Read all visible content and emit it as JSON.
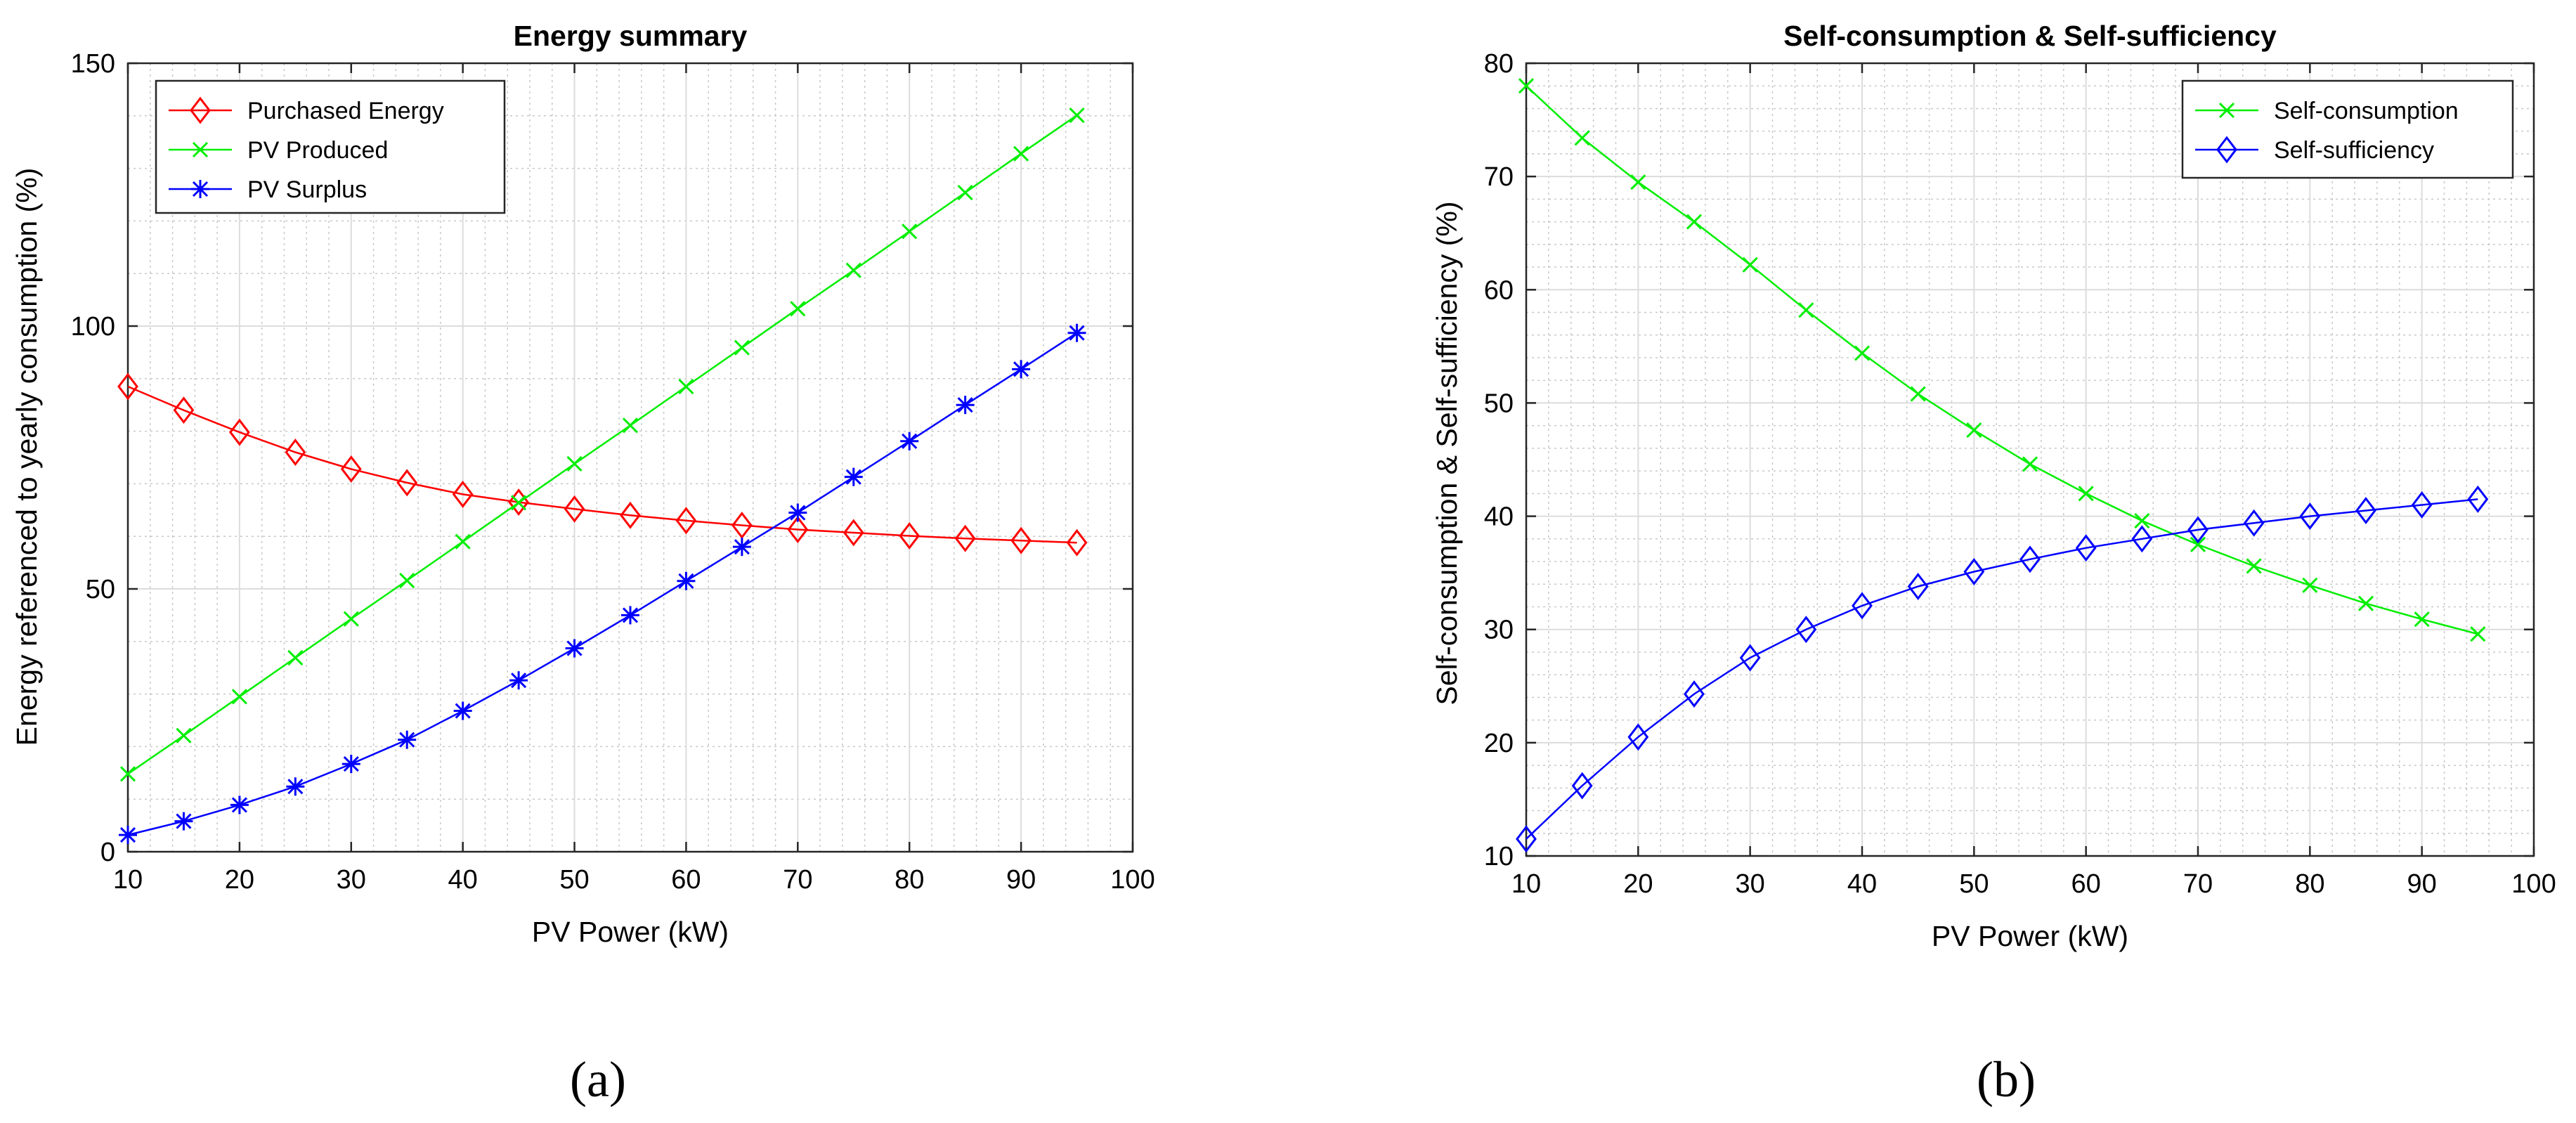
{
  "chart_data": [
    {
      "id": "a",
      "type": "line",
      "caption": "(a)",
      "title": "Energy summary",
      "xlabel": "PV Power (kW)",
      "ylabel": "Energy referenced to yearly consumption (%)",
      "xlim": [
        10,
        100
      ],
      "ylim": [
        0,
        150
      ],
      "xticks": [
        10,
        20,
        30,
        40,
        50,
        60,
        70,
        80,
        90,
        100
      ],
      "yticks": [
        0,
        50,
        100,
        150
      ],
      "grid": true,
      "legend_location": "top-left",
      "x": [
        10,
        15,
        20,
        25,
        30,
        35,
        40,
        45,
        50,
        55,
        60,
        65,
        70,
        75,
        80,
        85,
        90,
        95
      ],
      "series": [
        {
          "name": "Purchased Energy",
          "color": "#ff0000",
          "marker": "diamond",
          "values": [
            88.5,
            84,
            79.8,
            76,
            72.8,
            70.2,
            68,
            66.5,
            65.2,
            64,
            63,
            62.1,
            61.3,
            60.7,
            60.1,
            59.6,
            59.2,
            58.8
          ]
        },
        {
          "name": "PV Produced",
          "color": "#00ee00",
          "marker": "x",
          "values": [
            14.8,
            22.1,
            29.5,
            36.9,
            44.3,
            51.6,
            59,
            66.4,
            73.8,
            81.1,
            88.5,
            95.9,
            103.3,
            110.6,
            118,
            125.4,
            132.8,
            140.1
          ]
        },
        {
          "name": "PV Surplus",
          "color": "#0000ff",
          "marker": "asterisk",
          "values": [
            3.2,
            5.8,
            8.9,
            12.4,
            16.7,
            21.3,
            26.8,
            32.6,
            38.7,
            45,
            51.5,
            58,
            64.5,
            71.3,
            78.1,
            85,
            91.8,
            98.7
          ]
        }
      ]
    },
    {
      "id": "b",
      "type": "line",
      "caption": "(b)",
      "title": "Self-consumption & Self-sufficiency",
      "xlabel": "PV Power (kW)",
      "ylabel": "Self-consumption & Self-sufficiency (%)",
      "xlim": [
        10,
        100
      ],
      "ylim": [
        10,
        80
      ],
      "xticks": [
        10,
        20,
        30,
        40,
        50,
        60,
        70,
        80,
        90,
        100
      ],
      "yticks": [
        10,
        20,
        30,
        40,
        50,
        60,
        70,
        80
      ],
      "grid": true,
      "legend_location": "top-right",
      "x": [
        10,
        15,
        20,
        25,
        30,
        35,
        40,
        45,
        50,
        55,
        60,
        65,
        70,
        75,
        80,
        85,
        90,
        95
      ],
      "series": [
        {
          "name": "Self-consumption",
          "color": "#00ee00",
          "marker": "x",
          "values": [
            78,
            73.4,
            69.5,
            66,
            62.2,
            58.2,
            54.4,
            50.8,
            47.6,
            44.6,
            42,
            39.6,
            37.5,
            35.6,
            33.9,
            32.3,
            30.9,
            29.6
          ]
        },
        {
          "name": "Self-sufficiency",
          "color": "#0000ff",
          "marker": "diamond",
          "values": [
            11.5,
            16.2,
            20.5,
            24.3,
            27.5,
            30,
            32.1,
            33.8,
            35.1,
            36.2,
            37.2,
            38,
            38.8,
            39.4,
            40,
            40.5,
            41,
            41.5
          ]
        }
      ]
    }
  ]
}
